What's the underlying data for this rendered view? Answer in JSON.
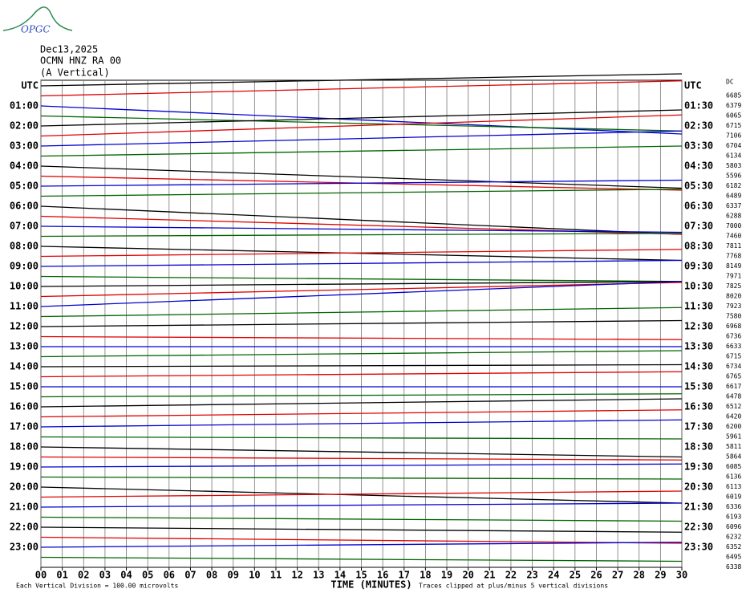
{
  "chart_data": {
    "type": "helicorder",
    "logo": "OPGC",
    "date": "Dec13,2025",
    "station": "OCMN HNZ RA 00",
    "component": "(A Vertical)",
    "dc_header": "DC",
    "xlabel": "TIME (MINUTES)",
    "scale_note": "Each Vertical Division =  100.00 microvolts",
    "clip_note": "Traces clipped at plus/minus 5 vertical divisions",
    "uv_per_division": 100,
    "colors": [
      "#000000",
      "#e00000",
      "#0000d0",
      "#006400"
    ],
    "xlim": [
      0,
      30
    ],
    "xticks": [
      {
        "value": 0,
        "label": "00"
      },
      {
        "value": 1,
        "label": "01"
      },
      {
        "value": 2,
        "label": "02"
      },
      {
        "value": 3,
        "label": "03"
      },
      {
        "value": 4,
        "label": "04"
      },
      {
        "value": 5,
        "label": "05"
      },
      {
        "value": 6,
        "label": "06"
      },
      {
        "value": 7,
        "label": "07"
      },
      {
        "value": 8,
        "label": "08"
      },
      {
        "value": 9,
        "label": "09"
      },
      10,
      11,
      12,
      13,
      14,
      15,
      16,
      17,
      18,
      19,
      20,
      21,
      22,
      23,
      24,
      25,
      26,
      27,
      28,
      29,
      30
    ],
    "left_labels": [
      "UTC",
      "01:00",
      "02:00",
      "03:00",
      "04:00",
      "05:00",
      "06:00",
      "07:00",
      "08:00",
      "09:00",
      "10:00",
      "11:00",
      "12:00",
      "13:00",
      "14:00",
      "15:00",
      "16:00",
      "17:00",
      "18:00",
      "19:00",
      "20:00",
      "21:00",
      "22:00",
      "23:00"
    ],
    "right_labels": [
      "UTC",
      "01:30",
      "02:30",
      "03:30",
      "04:30",
      "05:30",
      "06:30",
      "07:30",
      "08:30",
      "09:30",
      "10:30",
      "11:30",
      "12:30",
      "13:30",
      "14:30",
      "15:30",
      "16:30",
      "17:30",
      "18:30",
      "19:30",
      "20:30",
      "21:30",
      "22:30",
      "23:30"
    ],
    "dc_values": [
      6685,
      6379,
      6065,
      6715,
      7106,
      6704,
      6134,
      5803,
      5596,
      6182,
      6489,
      6337,
      6288,
      7000,
      7460,
      7811,
      7768,
      8149,
      7971,
      7825,
      8020,
      7923,
      7580,
      6968,
      6736,
      6633,
      6715,
      6734,
      6765,
      6617,
      6478,
      6512,
      6420,
      6200,
      5961,
      5811,
      5864,
      6085,
      6136,
      6113,
      6019,
      6336,
      6193,
      6096,
      6232,
      6352,
      6495,
      6338
    ],
    "trace_x": [
      0,
      30
    ],
    "traces": [
      [
        0,
        120
      ],
      [
        0,
        150
      ],
      [
        0,
        -280
      ],
      [
        0,
        -150
      ],
      [
        0,
        160
      ],
      [
        0,
        210
      ],
      [
        0,
        150
      ],
      [
        0,
        100
      ],
      [
        0,
        -220
      ],
      [
        0,
        -140
      ],
      [
        0,
        60
      ],
      [
        0,
        70
      ],
      [
        0,
        -280
      ],
      [
        0,
        -180
      ],
      [
        0,
        -60
      ],
      [
        0,
        30
      ],
      [
        0,
        -140
      ],
      [
        0,
        70
      ],
      [
        0,
        60
      ],
      [
        0,
        -50
      ],
      [
        0,
        50
      ],
      [
        0,
        140
      ],
      [
        0,
        250
      ],
      [
        0,
        90
      ],
      [
        0,
        60
      ],
      [
        0,
        -30
      ],
      [
        0,
        0
      ],
      [
        0,
        60
      ],
      [
        0,
        20
      ],
      [
        0,
        50
      ],
      [
        0,
        0
      ],
      [
        0,
        30
      ],
      [
        0,
        80
      ],
      [
        0,
        70
      ],
      [
        0,
        70
      ],
      [
        0,
        -20
      ],
      [
        0,
        -100
      ],
      [
        0,
        -30
      ],
      [
        0,
        30
      ],
      [
        0,
        -20
      ],
      [
        0,
        -160
      ],
      [
        0,
        60
      ],
      [
        0,
        40
      ],
      [
        0,
        -40
      ],
      [
        0,
        -50
      ],
      [
        0,
        -60
      ],
      [
        0,
        50
      ],
      [
        0,
        -40
      ]
    ]
  }
}
